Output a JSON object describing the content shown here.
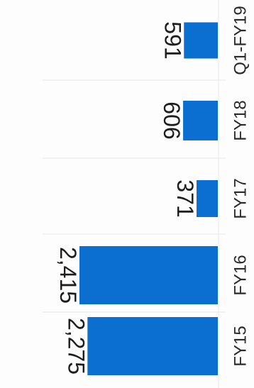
{
  "chart_data": {
    "type": "bar",
    "orientation": "horizontal",
    "categories": [
      "Q1-FY19",
      "FY18",
      "FY17",
      "FY16",
      "FY15"
    ],
    "values": [
      591,
      606,
      371,
      2415,
      2275
    ],
    "value_labels": [
      "591",
      "606",
      "371",
      "2,415",
      "2,275"
    ],
    "title": "",
    "xlabel": "",
    "ylabel": "",
    "grid": true,
    "colors": {
      "bar": "#0a6fd0",
      "grid": "#e6e6e6",
      "text": "#1d1d1d"
    }
  }
}
